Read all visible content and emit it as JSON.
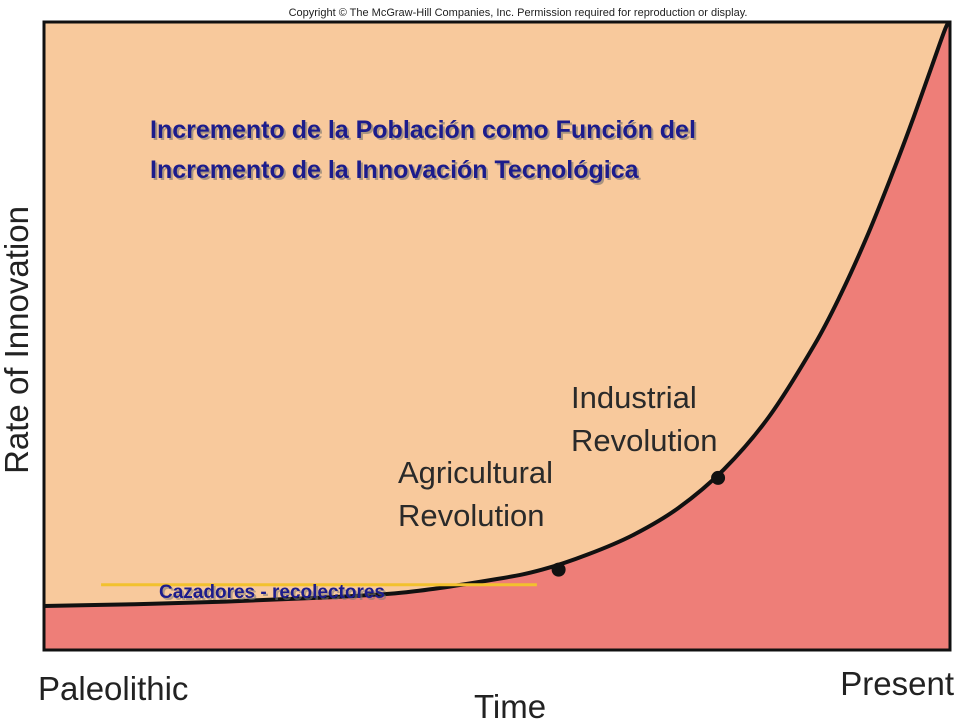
{
  "copyright": "Copyright © The McGraw-Hill Companies, Inc.  Permission required for reproduction or display.",
  "colors": {
    "upper_fill": "#f8c99c",
    "lower_fill": "#ee7e78",
    "curve": "#111111",
    "frame": "#111111",
    "hunter_line": "#f2c12e",
    "title_text": "#1c1c8c"
  },
  "chart_data": {
    "type": "area",
    "title": [
      "Incremento de la Población como Función del",
      "Incremento de la Innovación Tecnológica"
    ],
    "xlabel": "Time",
    "ylabel": "Rate of Innovation",
    "x_tick_labels": [
      "Paleolithic",
      "Present"
    ],
    "xlim": [
      0,
      100
    ],
    "ylim": [
      0,
      100
    ],
    "grid": false,
    "series": [
      {
        "x": [
          0,
          10,
          20,
          30,
          40,
          50,
          55,
          60,
          65,
          70,
          75,
          80,
          85,
          88,
          91,
          94,
          96,
          98,
          99.5,
          100
        ],
        "y": [
          7,
          7.3,
          7.7,
          8.3,
          9.2,
          11.3,
          12.8,
          15.2,
          18.3,
          22.6,
          28.7,
          37.1,
          48.5,
          56.8,
          66.4,
          77.2,
          84.9,
          93.0,
          99.0,
          100
        ]
      }
    ],
    "annotations": [
      {
        "label": [
          "Agricultural",
          "Revolution"
        ],
        "x": 56.8,
        "y": 12.8
      },
      {
        "label": [
          "Industrial",
          "Revolution"
        ],
        "x": 74.4,
        "y": 27.4
      }
    ],
    "band": {
      "label": "Cazadores - recolectores",
      "x_start": 6.3,
      "x_end": 54.4,
      "y": 10.4
    }
  }
}
